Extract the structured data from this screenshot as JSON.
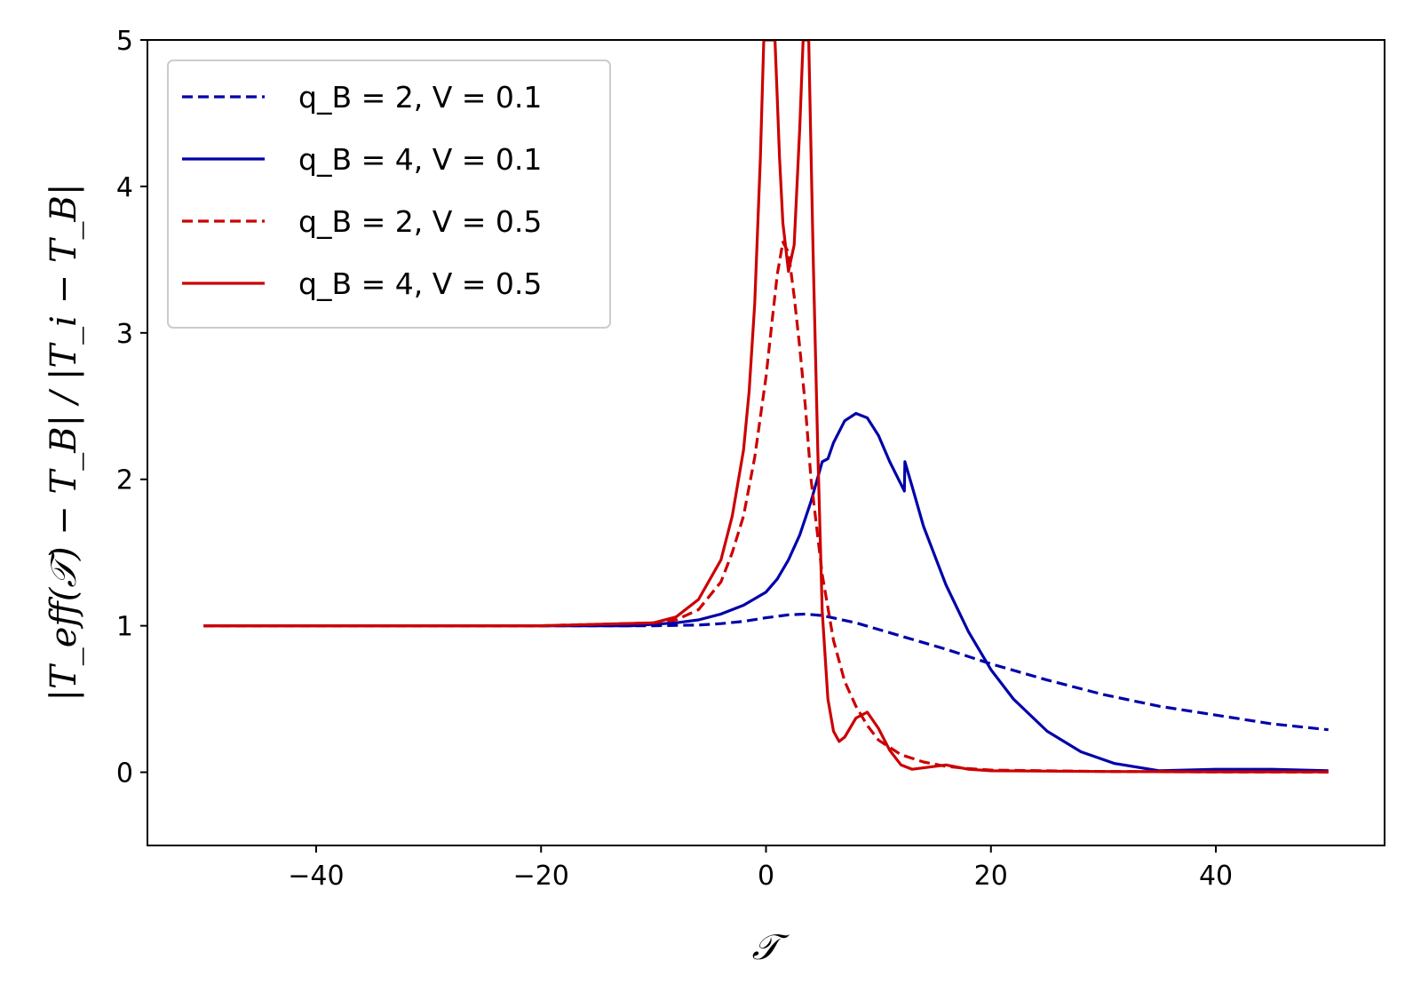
{
  "chart_data": {
    "type": "line",
    "title": "",
    "xlabel": "𝒯",
    "ylabel": "|T_eff(𝒯) − T_B| / |T_i − T_B|",
    "xlim": [
      -55,
      55
    ],
    "ylim": [
      -0.5,
      5
    ],
    "xticks": [
      -40,
      -20,
      0,
      20,
      40
    ],
    "xtick_labels": [
      "−40",
      "−20",
      "0",
      "20",
      "40"
    ],
    "yticks": [
      0,
      1,
      2,
      3,
      4,
      5
    ],
    "ytick_labels": [
      "0",
      "1",
      "2",
      "3",
      "4",
      "5"
    ],
    "grid": false,
    "legend_position": "upper-left",
    "series": [
      {
        "name": "q_B = 2,  V = 0.1",
        "color": "#0000aa",
        "dash": "dashed",
        "x": [
          -50,
          -30,
          -20,
          -15,
          -10,
          -6,
          -4,
          -2,
          0,
          2,
          3.5,
          5,
          8,
          12,
          16,
          20,
          25,
          30,
          35,
          40,
          45,
          50
        ],
        "y": [
          1.0,
          1.0,
          1.0,
          1.0,
          1.0,
          1.005,
          1.015,
          1.03,
          1.055,
          1.075,
          1.08,
          1.07,
          1.02,
          0.93,
          0.84,
          0.74,
          0.63,
          0.53,
          0.45,
          0.39,
          0.33,
          0.29
        ]
      },
      {
        "name": "q_B = 4,  V = 0.1",
        "color": "#0000aa",
        "dash": "solid",
        "x": [
          -50,
          -20,
          -12,
          -8,
          -6,
          -4,
          -2,
          0,
          1,
          2,
          3,
          4,
          5,
          5.5,
          6,
          7,
          8,
          9,
          10,
          11,
          12.3,
          12.35,
          13,
          14,
          16,
          18,
          20,
          22,
          25,
          28,
          31,
          35,
          40,
          45,
          50
        ],
        "y": [
          1.0,
          1.0,
          1.0,
          1.02,
          1.04,
          1.08,
          1.14,
          1.23,
          1.32,
          1.45,
          1.62,
          1.85,
          2.12,
          2.14,
          2.25,
          2.4,
          2.45,
          2.42,
          2.3,
          2.12,
          1.92,
          2.12,
          1.95,
          1.68,
          1.28,
          0.96,
          0.7,
          0.5,
          0.28,
          0.14,
          0.06,
          0.01,
          0.02,
          0.02,
          0.01
        ]
      },
      {
        "name": "q_B = 2,  V = 0.5",
        "color": "#cc0000",
        "dash": "dashed",
        "x": [
          -50,
          -20,
          -10,
          -8,
          -6,
          -4,
          -3,
          -2,
          -1,
          0,
          0.5,
          1,
          1.5,
          2,
          2.5,
          3,
          3.5,
          4,
          5,
          6,
          7,
          8,
          9,
          10,
          12,
          14,
          16,
          18,
          20,
          30,
          40,
          50
        ],
        "y": [
          1.0,
          1.0,
          1.02,
          1.04,
          1.11,
          1.3,
          1.5,
          1.75,
          2.15,
          2.7,
          3.05,
          3.4,
          3.62,
          3.55,
          3.25,
          2.9,
          2.5,
          2.0,
          1.35,
          0.9,
          0.62,
          0.45,
          0.32,
          0.22,
          0.12,
          0.07,
          0.04,
          0.025,
          0.015,
          0.005,
          0.002,
          0.001
        ]
      },
      {
        "name": "q_B = 4,  V = 0.5",
        "color": "#cc0000",
        "dash": "solid",
        "x": [
          -50,
          -20,
          -10,
          -8,
          -6,
          -4,
          -3,
          -2,
          -1.5,
          -1,
          -0.5,
          -0.2,
          0.8,
          1.0,
          1.2,
          1.5,
          2.0,
          2.5,
          3.0,
          3.3,
          3.8,
          4.2,
          4.6,
          5.0,
          5.5,
          6.0,
          6.5,
          7,
          8,
          9,
          10,
          11,
          12,
          13,
          14,
          16,
          18,
          20,
          30,
          40,
          50
        ],
        "y": [
          1.0,
          1.0,
          1.02,
          1.06,
          1.18,
          1.45,
          1.75,
          2.2,
          2.6,
          3.2,
          4.2,
          5.0,
          5.0,
          4.6,
          4.2,
          3.75,
          3.42,
          3.6,
          4.4,
          5.0,
          5.0,
          3.5,
          2.2,
          1.1,
          0.5,
          0.28,
          0.21,
          0.24,
          0.37,
          0.41,
          0.3,
          0.15,
          0.05,
          0.02,
          0.03,
          0.05,
          0.02,
          0.01,
          0.005,
          0.003,
          0.002
        ]
      }
    ]
  }
}
